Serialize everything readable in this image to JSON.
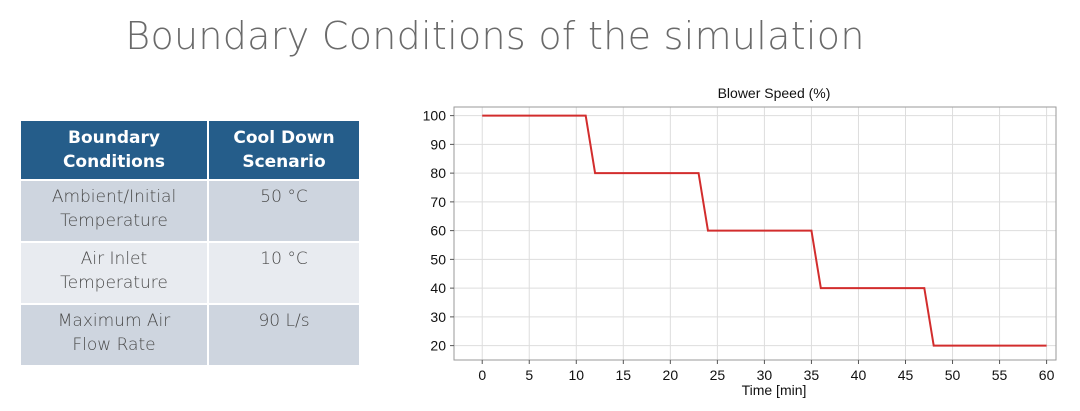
{
  "slide": {
    "title": "Boundary Conditions of the simulation"
  },
  "table": {
    "headers": [
      "Boundary\nConditions",
      "Cool Down\nScenario"
    ],
    "rows": [
      {
        "label": "Ambient/Initial\nTemperature",
        "value": "50 °C"
      },
      {
        "label": "Air Inlet\nTemperature",
        "value": "10 °C"
      },
      {
        "label": "Maximum Air\nFlow Rate",
        "value": "90 L/s"
      }
    ]
  },
  "chart_data": {
    "type": "line",
    "title": "Blower Speed (%)",
    "xlabel": "Time [min]",
    "ylabel": "",
    "xlim": [
      -3,
      61
    ],
    "ylim": [
      15,
      103
    ],
    "xticks": [
      0,
      5,
      10,
      15,
      20,
      25,
      30,
      35,
      40,
      45,
      50,
      55,
      60
    ],
    "yticks": [
      20,
      30,
      40,
      50,
      60,
      70,
      80,
      90,
      100
    ],
    "grid": true,
    "legend": "none",
    "series": [
      {
        "color": "#d22d2d",
        "x": [
          0,
          11,
          12,
          23,
          24,
          35,
          36,
          47,
          48,
          60
        ],
        "y": [
          100,
          100,
          80,
          80,
          60,
          60,
          40,
          40,
          20,
          20
        ]
      }
    ]
  },
  "colors": {
    "header_bg": "#255d8a",
    "row_dark": "#ced5df",
    "row_light": "#e8ebf0",
    "series_line": "#d22d2d"
  }
}
